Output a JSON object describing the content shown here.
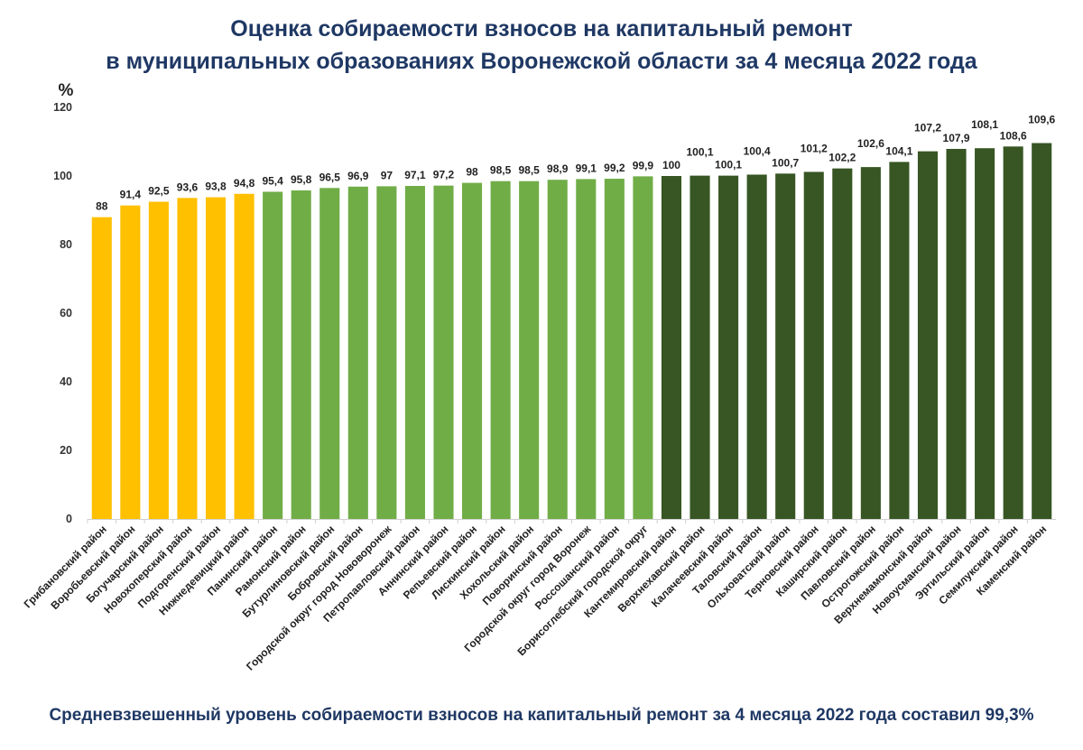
{
  "chart_data": {
    "type": "bar",
    "title": "Оценка собираемости взносов на капитальный ремонт",
    "subtitle": "в муниципальных образованиях Воронежской области за 4 месяца 2022 года",
    "ylabel": "%",
    "xlabel": "",
    "ylim": [
      0,
      120
    ],
    "yticks": [
      0,
      20,
      40,
      60,
      80,
      100,
      120
    ],
    "grid": false,
    "legend": "none",
    "colors": {
      "below_95": "#ffc000",
      "95_to_100": "#70ad47",
      "above_100": "#375623",
      "title": "#1f3864"
    },
    "categories": [
      "Грибановский район",
      "Воробьевский район",
      "Богучарский район",
      "Новохоперский район",
      "Подгоренский район",
      "Нижнедевицкий район",
      "Панинский район",
      "Рамонский район",
      "Бутурлиновский район",
      "Бобровский район",
      "Городской округ город Нововоронеж",
      "Петропавловский район",
      "Аннинский район",
      "Репьевский район",
      "Лискинский район",
      "Хохольский район",
      "Поворинский район",
      "Городской округ город Воронеж",
      "Россошанский район",
      "Борисоглебский городской округ",
      "Кантемировский район",
      "Верхнехавский район",
      "Калачеевский район",
      "Таловский район",
      "Ольховатский район",
      "Терновский район",
      "Каширский район",
      "Павловский район",
      "Острогожский район",
      "Верхнемамонский район",
      "Новоусманский район",
      "Эртильский район",
      "Семилукский район",
      "Каменский район"
    ],
    "values": [
      88,
      91.4,
      92.5,
      93.6,
      93.8,
      94.8,
      95.4,
      95.8,
      96.5,
      96.9,
      97,
      97.1,
      97.2,
      98,
      98.5,
      98.5,
      98.9,
      99.1,
      99.2,
      99.9,
      100,
      100.1,
      100.1,
      100.4,
      100.7,
      101.2,
      102.2,
      102.6,
      104.1,
      107.2,
      107.9,
      108.1,
      108.6,
      109.6
    ],
    "data_labels": [
      "88",
      "91,4",
      "92,5",
      "93,6",
      "93,8",
      "94,8",
      "95,4",
      "95,8",
      "96,5",
      "96,9",
      "97",
      "97,1",
      "97,2",
      "98",
      "98,5",
      "98,5",
      "98,9",
      "99,1",
      "99,2",
      "99,9",
      "100",
      "100,1",
      "100,1",
      "100,4",
      "100,7",
      "101,2",
      "102,2",
      "102,6",
      "104,1",
      "107,2",
      "107,9",
      "108,1",
      "108,6",
      "109,6"
    ],
    "footnote": "Средневзвешенный уровень собираемости взносов на капитальный ремонт за 4 месяца 2022 года составил 99,3%"
  }
}
